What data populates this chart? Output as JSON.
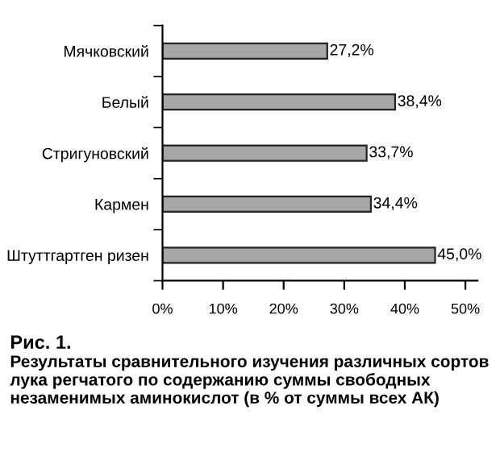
{
  "chart_data": {
    "type": "bar",
    "orientation": "horizontal",
    "title": "Рис. 1.",
    "subtitle": "Результаты сравнительного изучения различных сортов лука регчатого по содержанию суммы свободных незаменимых аминокислот (в % от суммы всех АК)",
    "categories": [
      "Мячковский",
      "Белый",
      "Стригуновский",
      "Кармен",
      "Штуттгартген ризен"
    ],
    "values": [
      27.2,
      38.4,
      33.7,
      34.4,
      45.0
    ],
    "value_labels": [
      "27,2%",
      "38,4%",
      "33,7%",
      "34,4%",
      "45,0%"
    ],
    "color": "#a6a6a6",
    "xlim": [
      0,
      52
    ],
    "xticks": [
      {
        "value": 0,
        "label": "0%"
      },
      {
        "value": 10,
        "label": "10%"
      },
      {
        "value": 20,
        "label": "20%"
      },
      {
        "value": 30,
        "label": "30%"
      },
      {
        "value": 40,
        "label": "40%"
      },
      {
        "value": 50,
        "label": "50%"
      }
    ],
    "grid": false,
    "legend": false
  }
}
